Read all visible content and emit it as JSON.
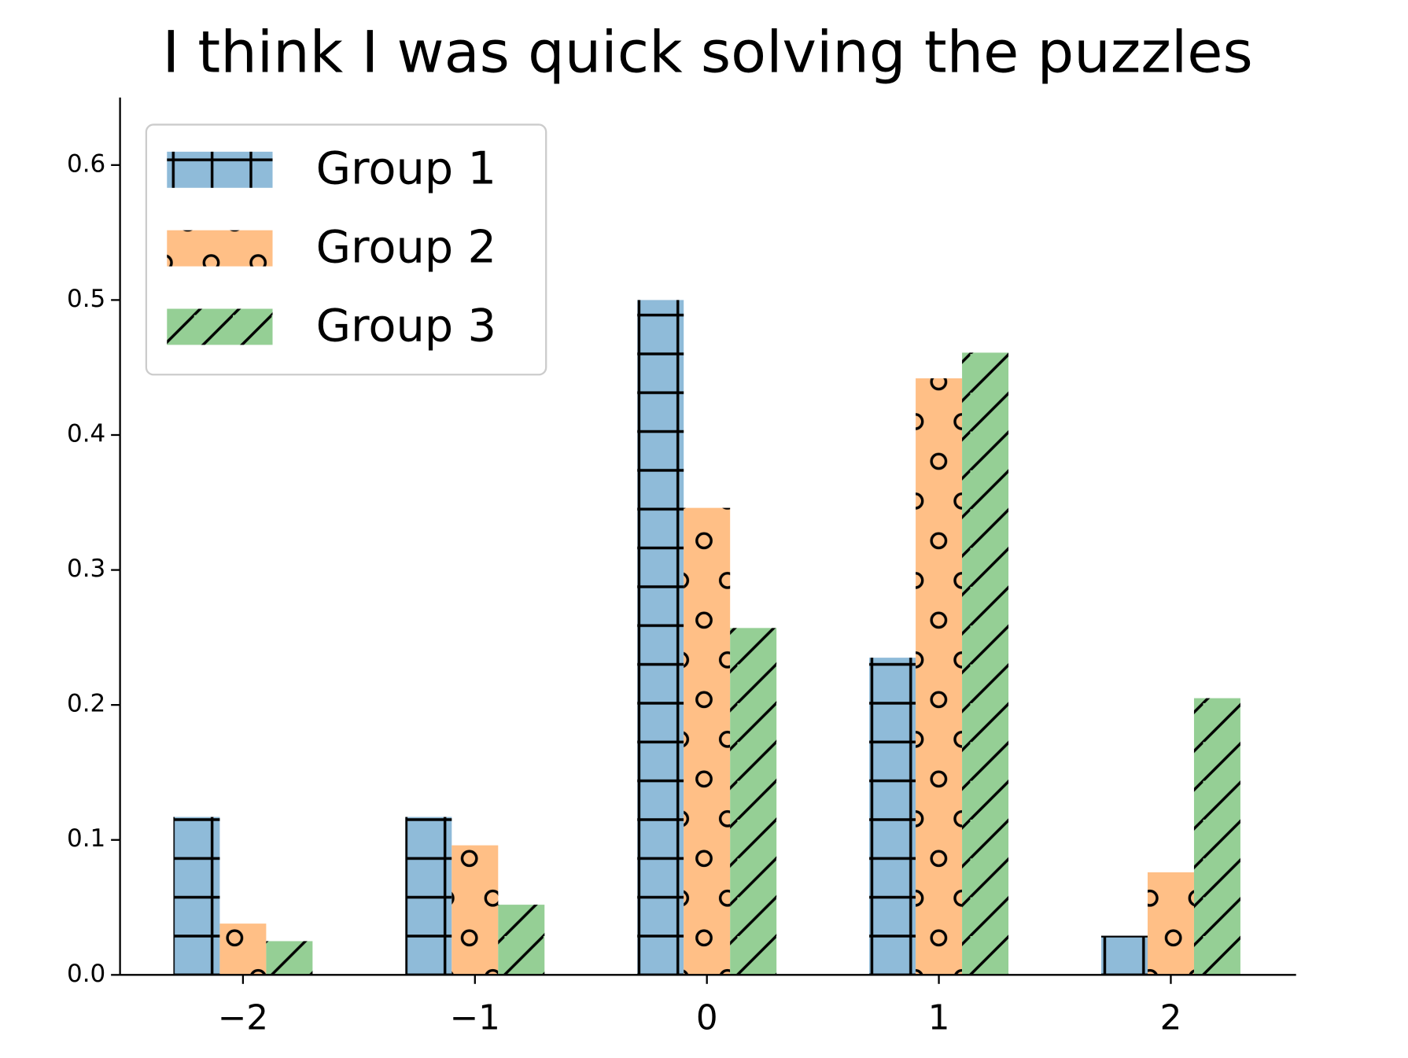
{
  "chart_data": {
    "type": "bar",
    "title": "I think I was quick solving the puzzles",
    "x": [
      -2,
      -1,
      0,
      1,
      2
    ],
    "xlim": [
      -2.53,
      2.54
    ],
    "xticks": [
      {
        "value": -2,
        "label": "−2"
      },
      {
        "value": -1,
        "label": "−1"
      },
      0,
      1,
      2
    ],
    "ylim": [
      0,
      0.65
    ],
    "yticks": [
      {
        "value": 0,
        "label": "0.0"
      },
      0.1,
      0.2,
      0.3,
      0.4,
      0.5,
      0.6
    ],
    "legend": "upper left",
    "series": [
      {
        "name": "Group 1",
        "color": "#8fbbd9",
        "hatch": "+",
        "values": [
          0.117,
          0.117,
          0.5,
          0.235,
          0.029
        ]
      },
      {
        "name": "Group 2",
        "color": "#ffbf86",
        "hatch": "o",
        "values": [
          0.038,
          0.096,
          0.346,
          0.442,
          0.076
        ]
      },
      {
        "name": "Group 3",
        "color": "#95cf95",
        "hatch": "/",
        "values": [
          0.025,
          0.052,
          0.257,
          0.461,
          0.205
        ]
      }
    ]
  }
}
